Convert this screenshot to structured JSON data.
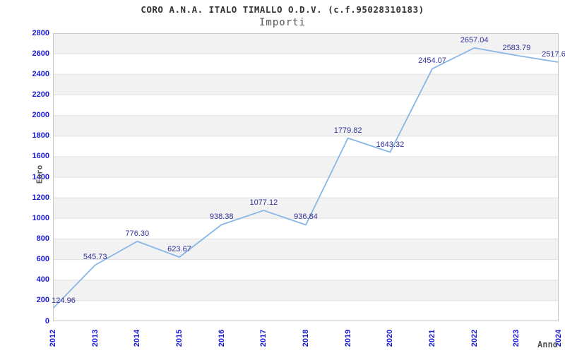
{
  "chart_data": {
    "type": "line",
    "title": "CORO A.N.A. ITALO TIMALLO O.D.V. (c.f.95028310183)",
    "subtitle": "Importi",
    "ylabel": "Euro",
    "xlabel": "Anno",
    "categories": [
      "2012",
      "2013",
      "2014",
      "2015",
      "2016",
      "2017",
      "2018",
      "2019",
      "2020",
      "2021",
      "2022",
      "2023",
      "2024"
    ],
    "values": [
      124.96,
      545.73,
      776.3,
      623.67,
      938.38,
      1077.12,
      936.84,
      1779.82,
      1643.32,
      2454.07,
      2657.04,
      2583.79,
      2517.6
    ],
    "point_labels": [
      "124.96",
      "545.73",
      "776.30",
      "623.67",
      "938.38",
      "1077.12",
      "936.84",
      "1779.82",
      "1643.32",
      "2454.07",
      "2657.04",
      "2583.79",
      "2517.6"
    ],
    "ylim": [
      0,
      2800
    ],
    "ytick_step": 200,
    "grid": "horizontal-bands",
    "legend": "none",
    "colors": {
      "line": "#88b6e6",
      "tick_label": "#1a1ad1",
      "point_label": "#333399",
      "band": "#f2f2f2",
      "gridline": "#e0e0e0",
      "plot_border": "#c8c8c8",
      "title": "#333333",
      "subtitle": "#555555",
      "axis_title": "#555555",
      "background": "#ffffff"
    }
  }
}
